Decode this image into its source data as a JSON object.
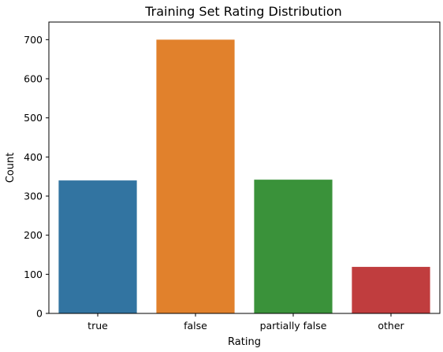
{
  "chart_data": {
    "type": "bar",
    "title": "Training Set Rating Distribution",
    "xlabel": "Rating",
    "ylabel": "Count",
    "categories": [
      "true",
      "false",
      "partially false",
      "other"
    ],
    "values": [
      340,
      700,
      342,
      119
    ],
    "colors": [
      "#3274a1",
      "#e1812c",
      "#3a923a",
      "#c03d3e"
    ],
    "ylim": [
      0,
      745
    ],
    "yticks": [
      0,
      100,
      200,
      300,
      400,
      500,
      600,
      700
    ],
    "grid": false,
    "legend": "none"
  }
}
